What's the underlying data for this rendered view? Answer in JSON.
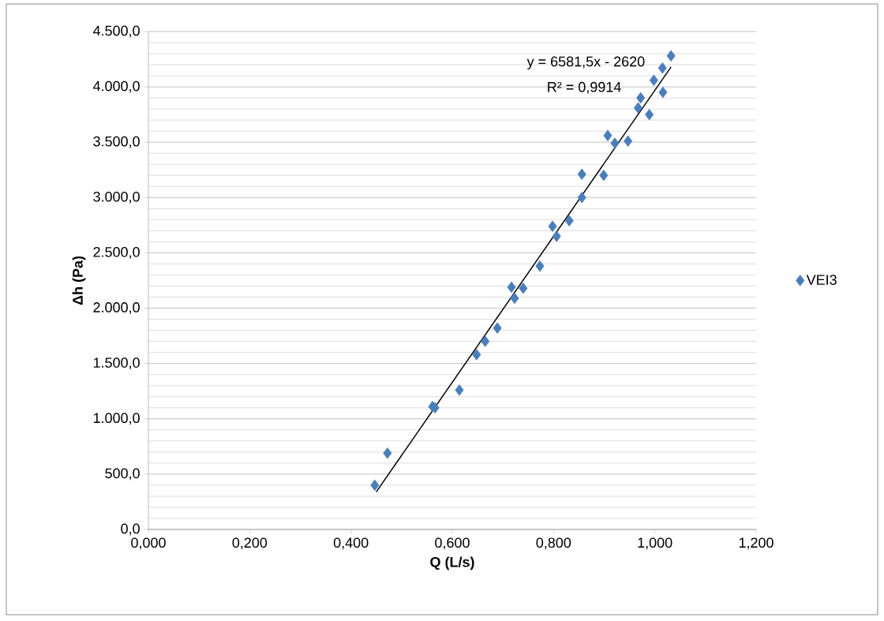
{
  "chart_data": {
    "type": "scatter",
    "xlabel": "Q (L/s)",
    "ylabel": "Δh (Pa)",
    "series": [
      {
        "name": "VEI3",
        "color": "#4a7ebb",
        "marker": "diamond",
        "x": [
          0.447,
          0.472,
          0.561,
          0.566,
          0.614,
          0.648,
          0.665,
          0.689,
          0.717,
          0.723,
          0.74,
          0.773,
          0.798,
          0.806,
          0.831,
          0.856,
          0.856,
          0.899,
          0.907,
          0.921,
          0.947,
          0.972,
          0.967,
          0.989,
          0.998,
          1.016,
          1.015,
          1.032
        ],
        "values": [
          400,
          690,
          1110,
          1100,
          1260,
          1580,
          1700,
          1820,
          2190,
          2090,
          2180,
          2380,
          2740,
          2650,
          2790,
          3000,
          3210,
          3200,
          3560,
          3490,
          3510,
          3900,
          3810,
          3750,
          4060,
          3950,
          4170,
          4280
        ]
      },
      {
        "type": "line",
        "color": "#000000",
        "marker": "none",
        "x": [
          0.45,
          1.032
        ],
        "values": [
          340,
          4180
        ]
      }
    ],
    "xlim": [
      0,
      1.2
    ],
    "ylim": [
      0,
      4500
    ],
    "xticks": [
      {
        "value": 0,
        "label": "0,000"
      },
      {
        "value": 0.2,
        "label": "0,200"
      },
      {
        "value": 0.4,
        "label": "0,400"
      },
      {
        "value": 0.6,
        "label": "0,600"
      },
      {
        "value": 0.8,
        "label": "0,800"
      },
      {
        "value": 1.0,
        "label": "1,000"
      },
      {
        "value": 1.2,
        "label": "1,200"
      }
    ],
    "yticks": [
      {
        "value": 0,
        "label": "0,0"
      },
      {
        "value": 500,
        "label": "500,0"
      },
      {
        "value": 1000,
        "label": "1.000,0"
      },
      {
        "value": 1500,
        "label": "1.500,0"
      },
      {
        "value": 2000,
        "label": "2.000,0"
      },
      {
        "value": 2500,
        "label": "2.500,0"
      },
      {
        "value": 3000,
        "label": "3.000,0"
      },
      {
        "value": 3500,
        "label": "3.500,0"
      },
      {
        "value": 4000,
        "label": "4.000,0"
      },
      {
        "value": 4500,
        "label": "4.500,0"
      }
    ],
    "grid": "y",
    "legend": "right",
    "annotations": [
      "y = 6581,5x - 2620",
      "R² = 0,9914"
    ]
  }
}
